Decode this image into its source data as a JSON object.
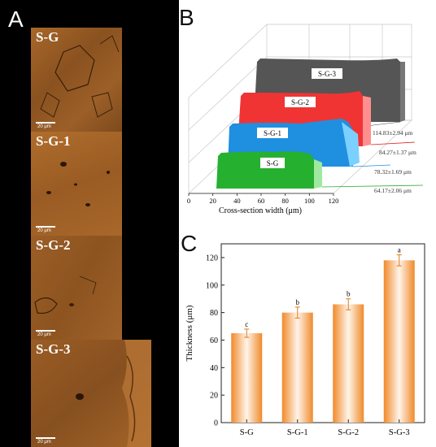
{
  "panelA": {
    "letter": "A",
    "images": [
      {
        "label": "S-G",
        "scale": "20 μm"
      },
      {
        "label": "S-G-1",
        "scale": "20 μm"
      },
      {
        "label": "S-G-2",
        "scale": "20 μm"
      },
      {
        "label": "S-G-3",
        "scale": "20 μm"
      }
    ]
  },
  "panelB": {
    "letter": "B",
    "xlabel": "Cross-section width (μm)",
    "xticks": [
      "0",
      "20",
      "40",
      "60",
      "80",
      "100",
      "120"
    ],
    "profiles": [
      {
        "name": "S-G",
        "value": "64.17±2.06 μm",
        "color": "#22a830"
      },
      {
        "name": "S-G-1",
        "value": "78.32±1.69 μm",
        "color": "#1f8fe0"
      },
      {
        "name": "S-G-2",
        "value": "84.27±1.37 μm",
        "color": "#ee2f2f"
      },
      {
        "name": "S-G-3",
        "value": "114.83±2.94 μm",
        "color": "#444444"
      }
    ]
  },
  "panelC": {
    "letter": "C"
  },
  "chart_data": [
    {
      "type": "area",
      "title": "",
      "xlabel": "Cross-section width (μm)",
      "ylabel": "",
      "xlim": [
        0,
        120
      ],
      "series": [
        {
          "name": "S-G",
          "value_label": "64.17±2.06 μm"
        },
        {
          "name": "S-G-1",
          "value_label": "78.32±1.69 μm"
        },
        {
          "name": "S-G-2",
          "value_label": "84.27±1.37 μm"
        },
        {
          "name": "S-G-3",
          "value_label": "114.83±2.94 μm"
        }
      ]
    },
    {
      "type": "bar",
      "title": "",
      "xlabel": "",
      "ylabel": "Thickness (μm)",
      "ylim": [
        0,
        130
      ],
      "yticks": [
        0,
        20,
        40,
        60,
        80,
        100,
        120
      ],
      "categories": [
        "S-G",
        "S-G-1",
        "S-G-2",
        "S-G-3"
      ],
      "values": [
        65,
        80,
        86,
        118
      ],
      "errors": [
        3,
        4,
        4,
        4
      ],
      "letters": [
        "c",
        "b",
        "b",
        "a"
      ],
      "bar_color": "#f08a2a"
    }
  ]
}
